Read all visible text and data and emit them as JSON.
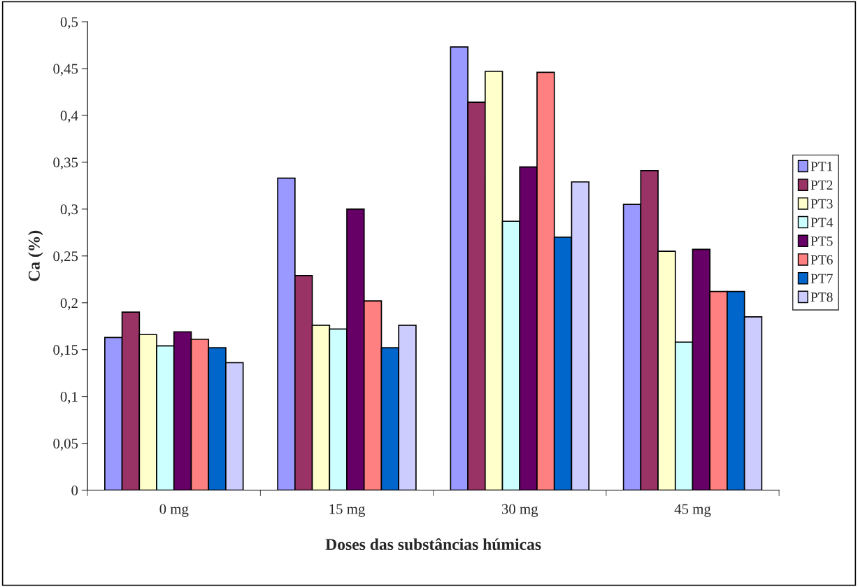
{
  "chart_data": {
    "type": "bar",
    "xlabel": "Doses das substâncias húmicas",
    "ylabel": "Ca (%)",
    "categories": [
      "0 mg",
      "15 mg",
      "30 mg",
      "45 mg"
    ],
    "series": [
      {
        "name": "PT1",
        "color": "#9999ff",
        "values": [
          0.163,
          0.333,
          0.473,
          0.305
        ]
      },
      {
        "name": "PT2",
        "color": "#993366",
        "values": [
          0.19,
          0.229,
          0.414,
          0.341
        ]
      },
      {
        "name": "PT3",
        "color": "#ffffcc",
        "values": [
          0.166,
          0.176,
          0.447,
          0.255
        ]
      },
      {
        "name": "PT4",
        "color": "#ccffff",
        "values": [
          0.154,
          0.172,
          0.287,
          0.158
        ]
      },
      {
        "name": "PT5",
        "color": "#660066",
        "values": [
          0.169,
          0.3,
          0.345,
          0.257
        ]
      },
      {
        "name": "PT6",
        "color": "#ff8080",
        "values": [
          0.161,
          0.202,
          0.446,
          0.212
        ]
      },
      {
        "name": "PT7",
        "color": "#0066cc",
        "values": [
          0.152,
          0.152,
          0.27,
          0.212
        ]
      },
      {
        "name": "PT8",
        "color": "#ccccff",
        "values": [
          0.136,
          0.176,
          0.329,
          0.185
        ]
      }
    ],
    "ylim": [
      0,
      0.5
    ],
    "yticks": [
      {
        "value": 0,
        "label": "0"
      },
      {
        "value": 0.05,
        "label": "0,05"
      },
      {
        "value": 0.1,
        "label": "0,1"
      },
      {
        "value": 0.15,
        "label": "0,15"
      },
      {
        "value": 0.2,
        "label": "0,2"
      },
      {
        "value": 0.25,
        "label": "0,25"
      },
      {
        "value": 0.3,
        "label": "0,3"
      },
      {
        "value": 0.35,
        "label": "0,35"
      },
      {
        "value": 0.4,
        "label": "0,4"
      },
      {
        "value": 0.45,
        "label": "0,45"
      },
      {
        "value": 0.5,
        "label": "0,5"
      }
    ],
    "grid": false,
    "legend": "right"
  }
}
